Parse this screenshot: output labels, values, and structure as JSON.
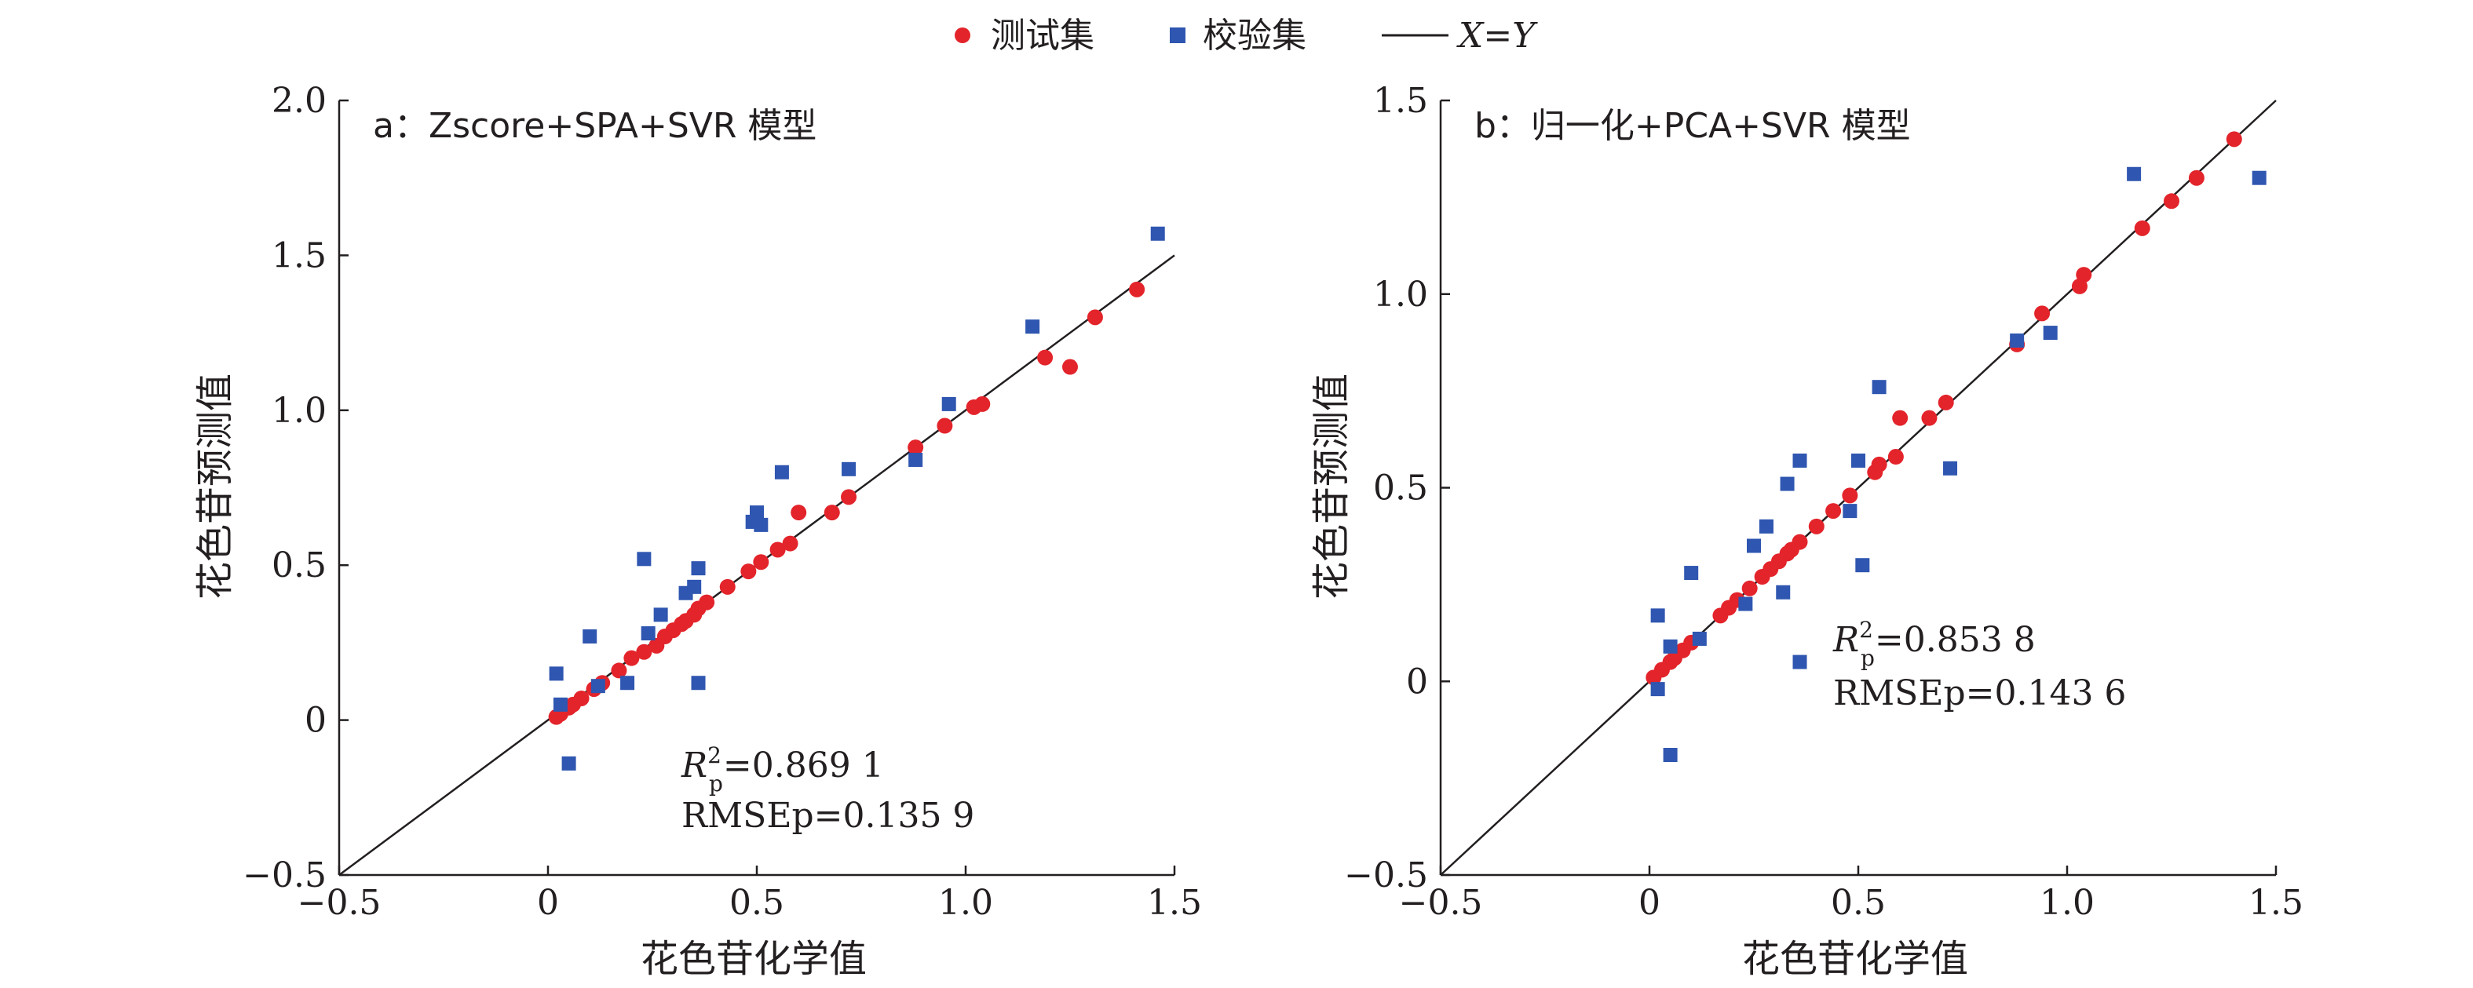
{
  "legend": {
    "items": [
      {
        "label": "测试集",
        "marker": "circle",
        "color": "#e3242b"
      },
      {
        "label": "校验集",
        "marker": "square",
        "color": "#2f56b0"
      },
      {
        "label": "X=Y",
        "marker": "line",
        "color": "#231f20"
      }
    ]
  },
  "colors": {
    "test": "#e3242b",
    "validation": "#2f56b0",
    "line": "#231f20"
  },
  "chart_data": [
    {
      "type": "scatter",
      "title": "a：Zscore+SPA+SVR 模型",
      "xlabel": "花色苷化学值",
      "ylabel": "花色苷预测值",
      "xlim": [
        -0.5,
        1.5
      ],
      "ylim": [
        -0.5,
        2.0
      ],
      "xticks": [
        "−0.5",
        "0",
        "0.5",
        "1.0",
        "1.5"
      ],
      "yticks": [
        "−0.5",
        "0",
        "0.5",
        "1.0",
        "1.5",
        "2.0"
      ],
      "xtick_values": [
        -0.5,
        0,
        0.5,
        1.0,
        1.5
      ],
      "ytick_values": [
        -0.5,
        0,
        0.5,
        1.0,
        1.5,
        2.0
      ],
      "metrics": {
        "r2_symbol": "R",
        "r2_sup": "2",
        "r2_sub": "p",
        "r2_value": "=0.869 1",
        "rmse_text": "RMSEp=0.135 9"
      },
      "reference_line": {
        "label": "X=Y",
        "from": [
          -0.5,
          -0.5
        ],
        "to": [
          1.5,
          1.5
        ]
      },
      "series": [
        {
          "name": "测试集",
          "marker": "circle",
          "points": [
            [
              0.02,
              0.01
            ],
            [
              0.03,
              0.02
            ],
            [
              0.05,
              0.04
            ],
            [
              0.06,
              0.05
            ],
            [
              0.08,
              0.07
            ],
            [
              0.11,
              0.1
            ],
            [
              0.13,
              0.12
            ],
            [
              0.17,
              0.16
            ],
            [
              0.2,
              0.2
            ],
            [
              0.23,
              0.22
            ],
            [
              0.26,
              0.24
            ],
            [
              0.28,
              0.27
            ],
            [
              0.3,
              0.29
            ],
            [
              0.32,
              0.31
            ],
            [
              0.33,
              0.32
            ],
            [
              0.35,
              0.34
            ],
            [
              0.36,
              0.36
            ],
            [
              0.38,
              0.38
            ],
            [
              0.43,
              0.43
            ],
            [
              0.48,
              0.48
            ],
            [
              0.51,
              0.51
            ],
            [
              0.55,
              0.55
            ],
            [
              0.58,
              0.57
            ],
            [
              0.6,
              0.67
            ],
            [
              0.68,
              0.67
            ],
            [
              0.72,
              0.72
            ],
            [
              0.88,
              0.88
            ],
            [
              0.95,
              0.95
            ],
            [
              1.02,
              1.01
            ],
            [
              1.04,
              1.02
            ],
            [
              1.19,
              1.17
            ],
            [
              1.25,
              1.14
            ],
            [
              1.31,
              1.3
            ],
            [
              1.41,
              1.39
            ]
          ]
        },
        {
          "name": "校验集",
          "marker": "square",
          "points": [
            [
              0.02,
              0.15
            ],
            [
              0.03,
              0.05
            ],
            [
              0.05,
              -0.14
            ],
            [
              0.1,
              0.27
            ],
            [
              0.12,
              0.11
            ],
            [
              0.19,
              0.12
            ],
            [
              0.23,
              0.52
            ],
            [
              0.24,
              0.28
            ],
            [
              0.27,
              0.34
            ],
            [
              0.33,
              0.41
            ],
            [
              0.35,
              0.43
            ],
            [
              0.36,
              0.49
            ],
            [
              0.36,
              0.12
            ],
            [
              0.49,
              0.64
            ],
            [
              0.5,
              0.67
            ],
            [
              0.51,
              0.63
            ],
            [
              0.56,
              0.8
            ],
            [
              0.72,
              0.81
            ],
            [
              0.88,
              0.84
            ],
            [
              0.96,
              1.02
            ],
            [
              1.16,
              1.27
            ],
            [
              1.46,
              1.57
            ]
          ]
        }
      ]
    },
    {
      "type": "scatter",
      "title": "b：归一化+PCA+SVR 模型",
      "xlabel": "花色苷化学值",
      "ylabel": "花色苷预测值",
      "xlim": [
        -0.5,
        1.5
      ],
      "ylim": [
        -0.5,
        1.5
      ],
      "xticks": [
        "−0.5",
        "0",
        "0.5",
        "1.0",
        "1.5"
      ],
      "yticks": [
        "−0.5",
        "0",
        "0.5",
        "1.0",
        "1.5"
      ],
      "xtick_values": [
        -0.5,
        0,
        0.5,
        1.0,
        1.5
      ],
      "ytick_values": [
        -0.5,
        0,
        0.5,
        1.0,
        1.5
      ],
      "metrics": {
        "r2_symbol": "R",
        "r2_sup": "2",
        "r2_sub": "p",
        "r2_value": "=0.853 8",
        "rmse_text": "RMSEp=0.143 6"
      },
      "reference_line": {
        "label": "X=Y",
        "from": [
          -0.5,
          -0.5
        ],
        "to": [
          1.5,
          1.5
        ]
      },
      "series": [
        {
          "name": "测试集",
          "marker": "circle",
          "points": [
            [
              0.01,
              0.01
            ],
            [
              0.03,
              0.03
            ],
            [
              0.05,
              0.05
            ],
            [
              0.06,
              0.06
            ],
            [
              0.08,
              0.08
            ],
            [
              0.1,
              0.1
            ],
            [
              0.17,
              0.17
            ],
            [
              0.19,
              0.19
            ],
            [
              0.21,
              0.21
            ],
            [
              0.24,
              0.24
            ],
            [
              0.27,
              0.27
            ],
            [
              0.29,
              0.29
            ],
            [
              0.31,
              0.31
            ],
            [
              0.33,
              0.33
            ],
            [
              0.34,
              0.34
            ],
            [
              0.36,
              0.36
            ],
            [
              0.4,
              0.4
            ],
            [
              0.44,
              0.44
            ],
            [
              0.48,
              0.48
            ],
            [
              0.54,
              0.54
            ],
            [
              0.55,
              0.56
            ],
            [
              0.59,
              0.58
            ],
            [
              0.6,
              0.68
            ],
            [
              0.67,
              0.68
            ],
            [
              0.71,
              0.72
            ],
            [
              0.88,
              0.87
            ],
            [
              0.94,
              0.95
            ],
            [
              1.03,
              1.02
            ],
            [
              1.04,
              1.05
            ],
            [
              1.18,
              1.17
            ],
            [
              1.25,
              1.24
            ],
            [
              1.31,
              1.3
            ],
            [
              1.4,
              1.4
            ]
          ]
        },
        {
          "name": "校验集",
          "marker": "square",
          "points": [
            [
              0.02,
              0.17
            ],
            [
              0.02,
              -0.02
            ],
            [
              0.05,
              -0.19
            ],
            [
              0.05,
              0.09
            ],
            [
              0.1,
              0.28
            ],
            [
              0.12,
              0.11
            ],
            [
              0.23,
              0.2
            ],
            [
              0.25,
              0.35
            ],
            [
              0.28,
              0.4
            ],
            [
              0.32,
              0.23
            ],
            [
              0.33,
              0.51
            ],
            [
              0.36,
              0.57
            ],
            [
              0.36,
              0.05
            ],
            [
              0.48,
              0.44
            ],
            [
              0.5,
              0.57
            ],
            [
              0.51,
              0.3
            ],
            [
              0.55,
              0.76
            ],
            [
              0.72,
              0.55
            ],
            [
              0.88,
              0.88
            ],
            [
              0.96,
              0.9
            ],
            [
              1.16,
              1.31
            ],
            [
              1.46,
              1.3
            ]
          ]
        }
      ]
    }
  ]
}
